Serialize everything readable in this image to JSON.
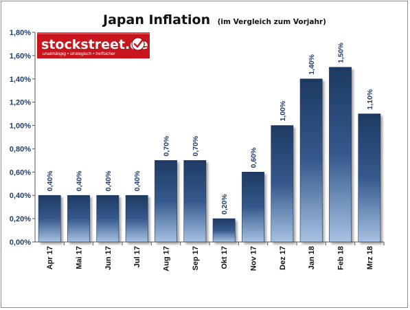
{
  "chart_data": {
    "type": "bar",
    "title": "Japan Inflation",
    "subtitle": "(im Vergleich zum Vorjahr)",
    "categories": [
      "Apr 17",
      "Mai 17",
      "Jun 17",
      "Jul 17",
      "Aug 17",
      "Sep 17",
      "Okt 17",
      "Nov 17",
      "Dez 17",
      "Jan 18",
      "Feb 18",
      "Mrz 18"
    ],
    "values": [
      0.4,
      0.4,
      0.4,
      0.4,
      0.7,
      0.7,
      0.2,
      0.6,
      1.0,
      1.4,
      1.5,
      1.1
    ],
    "value_labels": [
      "0,40%",
      "0,40%",
      "0,40%",
      "0,40%",
      "0,70%",
      "0,70%",
      "0,20%",
      "0,60%",
      "1,00%",
      "1,40%",
      "1,50%",
      "1,10%"
    ],
    "yticks": [
      0,
      0.2,
      0.4,
      0.6,
      0.8,
      1.0,
      1.2,
      1.4,
      1.6,
      1.8
    ],
    "ytick_labels": [
      "0,00%",
      "0,20%",
      "0,40%",
      "0,60%",
      "0,80%",
      "1,00%",
      "1,20%",
      "1,40%",
      "1,60%",
      "1,80%"
    ],
    "ylim": [
      0,
      1.8
    ],
    "xlabel": "",
    "ylabel": "",
    "grid": false,
    "colors": {
      "bar_top": "#1e3a63",
      "bar_mid": "#3a6195",
      "bar_bottom": "#a7c2e3",
      "axis": "#555555",
      "tick_label": "#1f3d6e",
      "logo_bg": "#c8141c"
    }
  },
  "logo": {
    "text": "stockstreet.de",
    "tagline": "unabhängig • strategisch • treffsicher",
    "icon": "checkmark-circle-icon"
  }
}
